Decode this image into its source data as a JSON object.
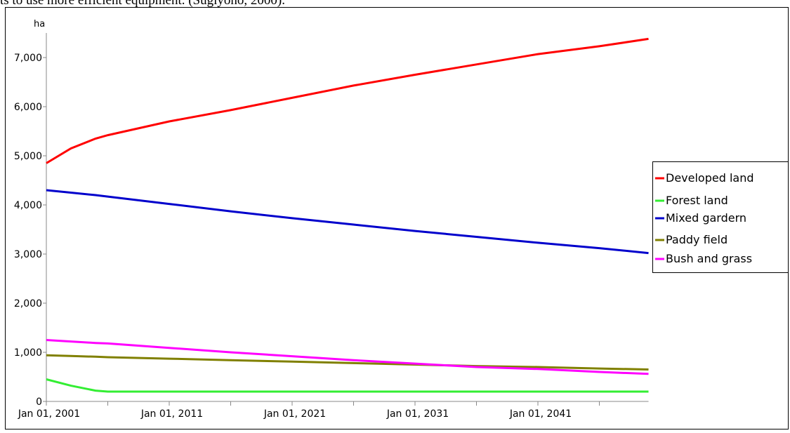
{
  "caption": "ts to use more efficient equipment. (Sugiyono, 2000).",
  "chart_data": {
    "type": "line",
    "ylabel": "ha",
    "x": [
      2001,
      2003,
      2005,
      2006,
      2011,
      2016,
      2021,
      2026,
      2031,
      2036,
      2041,
      2046,
      2050
    ],
    "xlim": [
      2001,
      2050
    ],
    "xticks": [
      {
        "value": 2001,
        "label": "Jan 01, 2001"
      },
      {
        "value": 2011,
        "label": "Jan 01, 2011"
      },
      {
        "value": 2021,
        "label": "Jan 01, 2021"
      },
      {
        "value": 2031,
        "label": "Jan 01, 2031"
      },
      {
        "value": 2041,
        "label": "Jan 01, 2041"
      }
    ],
    "xminorticks": [
      2006,
      2016,
      2026,
      2036,
      2046
    ],
    "ylim": [
      0,
      7500
    ],
    "yticks": [
      0,
      {
        "value": 1000,
        "label": "1,000"
      },
      {
        "value": 2000,
        "label": "2,000"
      },
      {
        "value": 3000,
        "label": "3,000"
      },
      {
        "value": 4000,
        "label": "4,000"
      },
      {
        "value": 5000,
        "label": "5,000"
      },
      {
        "value": 6000,
        "label": "6,000"
      },
      {
        "value": 7000,
        "label": "7,000"
      }
    ],
    "legend": "right",
    "series": [
      {
        "name": "Developed land",
        "color": "#ff0000",
        "values": [
          4850,
          5150,
          5350,
          5420,
          5700,
          5930,
          6180,
          6430,
          6650,
          6860,
          7070,
          7230,
          7380
        ]
      },
      {
        "name": "Forest land",
        "color": "#33ee33",
        "values": [
          450,
          320,
          220,
          200,
          200,
          200,
          200,
          200,
          200,
          200,
          200,
          200,
          200
        ]
      },
      {
        "name": "Mixed gardern",
        "color": "#0000cc",
        "values": [
          4300,
          4250,
          4200,
          4170,
          4020,
          3870,
          3730,
          3600,
          3470,
          3350,
          3230,
          3120,
          3020
        ]
      },
      {
        "name": "Paddy field",
        "color": "#808000",
        "values": [
          940,
          925,
          910,
          900,
          870,
          840,
          810,
          780,
          750,
          720,
          700,
          670,
          650
        ]
      },
      {
        "name": "Bush and grass",
        "color": "#ff00ff",
        "values": [
          1250,
          1220,
          1190,
          1180,
          1090,
          1000,
          920,
          840,
          770,
          700,
          660,
          600,
          560
        ]
      }
    ]
  }
}
